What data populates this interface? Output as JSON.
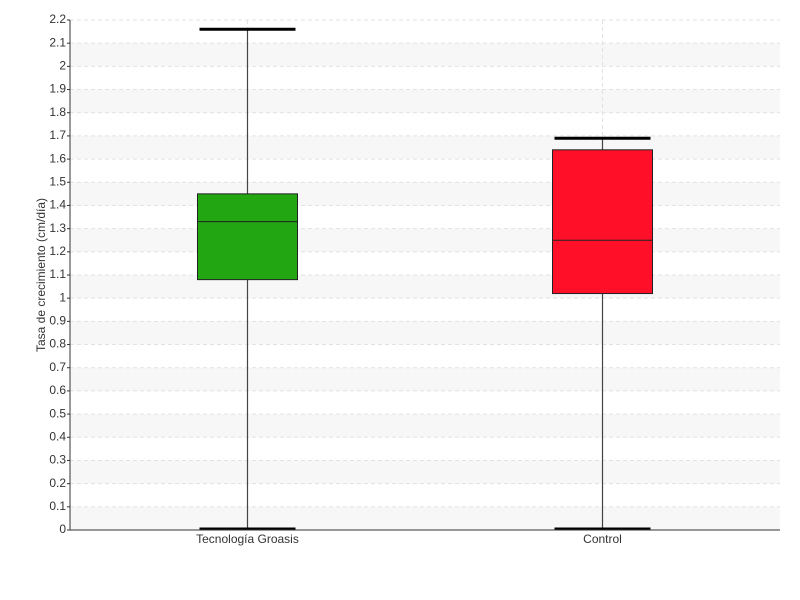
{
  "chart_data": {
    "type": "box",
    "y_label": "Tasa de crecimiento (cm/día)",
    "categories": [
      "Tecnología Groasis",
      "Control"
    ],
    "boxes": [
      {
        "min": 0,
        "q1": 1.08,
        "median": 1.33,
        "q3": 1.45,
        "max": 2.16,
        "color": "#22a612"
      },
      {
        "min": 0,
        "q1": 1.02,
        "median": 1.25,
        "q3": 1.64,
        "max": 1.69,
        "color": "#ff0f28"
      }
    ],
    "ylim": [
      0,
      2.2
    ],
    "yticks": [
      0,
      0.1,
      0.2,
      0.3,
      0.4,
      0.5,
      0.6,
      0.7,
      0.8,
      0.9,
      1,
      1.1,
      1.2,
      1.3,
      1.4,
      1.5,
      1.6,
      1.7,
      1.8,
      1.9,
      2,
      2.1,
      2.2
    ],
    "grid": true
  }
}
